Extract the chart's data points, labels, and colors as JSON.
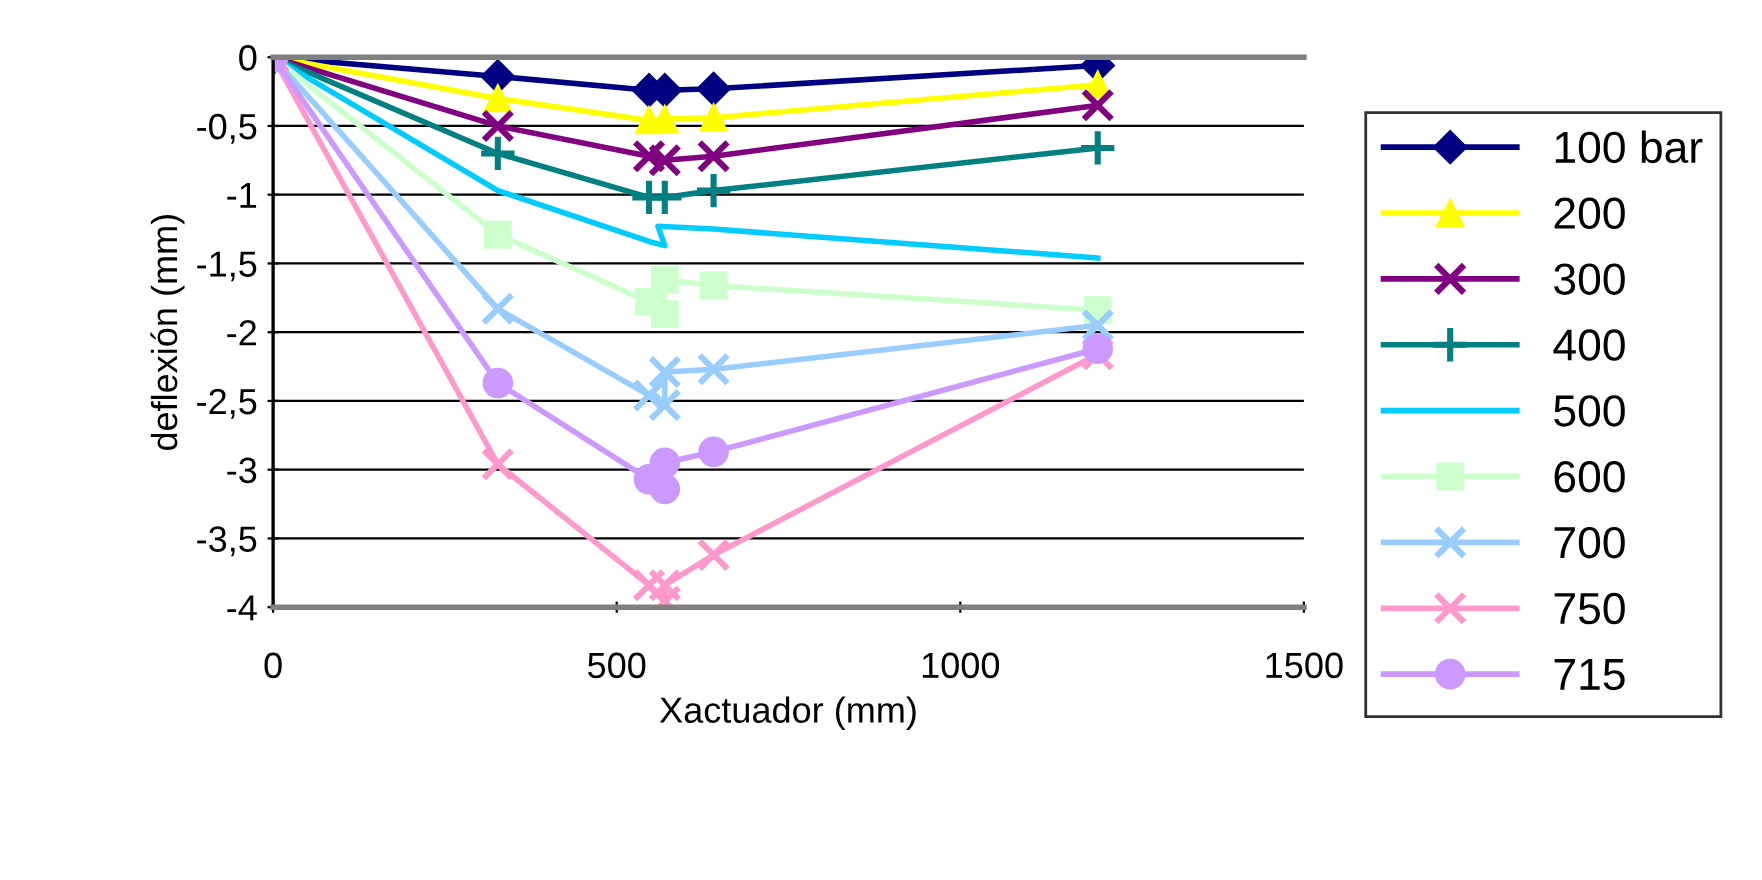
{
  "chart_data": {
    "type": "line",
    "xlabel": "Xactuador (mm)",
    "ylabel": "deflexión (mm)",
    "x": [
      0,
      327,
      547,
      570,
      641,
      1200
    ],
    "xlim": [
      0,
      1500
    ],
    "xticks": [
      0,
      500,
      1000,
      1500
    ],
    "ylim": [
      -4,
      0
    ],
    "yticks": [
      {
        "value": -4,
        "label": "-4"
      },
      {
        "value": -3.5,
        "label": "-3,5"
      },
      {
        "value": -3,
        "label": "-3"
      },
      {
        "value": -2.5,
        "label": "-2,5"
      },
      {
        "value": -2,
        "label": "-2"
      },
      {
        "value": -1.5,
        "label": "-1,5"
      },
      {
        "value": -1,
        "label": "-1"
      },
      {
        "value": -0.5,
        "label": "-0,5"
      },
      {
        "value": 0,
        "label": "0"
      }
    ],
    "grid": "y",
    "legend": "right",
    "series": [
      {
        "name": "100 bar",
        "color": "#000080",
        "marker": "diamond",
        "values": [
          0,
          -0.14,
          -0.24,
          -0.24,
          -0.23,
          -0.06
        ]
      },
      {
        "name": "200",
        "color": "#ffff00",
        "marker": "triangle",
        "values": [
          0,
          -0.3,
          -0.46,
          -0.45,
          -0.44,
          -0.2
        ]
      },
      {
        "name": "300",
        "color": "#800080",
        "marker": "cross",
        "values": [
          0,
          -0.5,
          -0.72,
          -0.75,
          -0.72,
          -0.35
        ]
      },
      {
        "name": "400",
        "color": "#008080",
        "marker": "plus",
        "values": [
          0,
          -0.7,
          -1.02,
          -1.02,
          -0.97,
          -0.66
        ]
      },
      {
        "name": "500",
        "color": "#00ccff",
        "x": [
          0,
          327,
          547,
          570,
          560,
          641,
          1200
        ],
        "values": [
          0,
          -0.97,
          -1.34,
          -1.37,
          -1.23,
          -1.25,
          -1.46
        ]
      },
      {
        "name": "600",
        "color": "#ccffcc",
        "marker": "square",
        "x": [
          0,
          327,
          547,
          570,
          570,
          641,
          1200
        ],
        "values": [
          0,
          -1.29,
          -1.78,
          -1.87,
          -1.62,
          -1.66,
          -1.84
        ]
      },
      {
        "name": "700",
        "color": "#99ccff",
        "marker": "cross",
        "x": [
          0,
          327,
          547,
          570,
          570,
          641,
          1200
        ],
        "values": [
          0,
          -1.83,
          -2.46,
          -2.53,
          -2.29,
          -2.27,
          -1.95
        ]
      },
      {
        "name": "750",
        "color": "#ff99cc",
        "marker": "cross",
        "x": [
          0,
          327,
          547,
          570,
          570,
          641,
          1200
        ],
        "values": [
          0,
          -2.96,
          -3.84,
          -3.96,
          -3.84,
          -3.62,
          -2.16
        ]
      },
      {
        "name": "715",
        "color": "#cc99ff",
        "marker": "circle",
        "x": [
          0,
          327,
          547,
          570,
          570,
          641,
          1200
        ],
        "values": [
          0,
          -2.37,
          -3.07,
          -3.14,
          -2.95,
          -2.87,
          -2.12
        ]
      }
    ]
  }
}
